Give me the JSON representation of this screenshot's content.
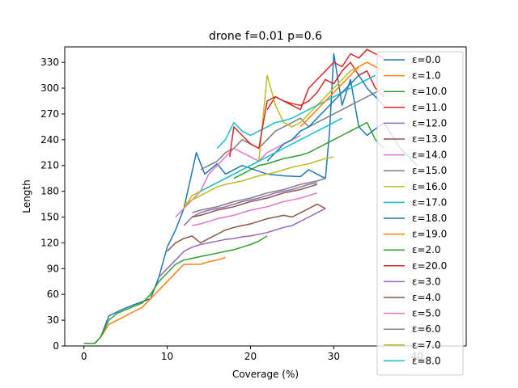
{
  "chart_data": {
    "type": "line",
    "title": "drone f=0.01 p=0.6",
    "xlabel": "Coverage (%)",
    "ylabel": "Length",
    "xlim": [
      -2.3,
      45.9
    ],
    "ylim": [
      0,
      348
    ],
    "xticks": [
      0,
      10,
      20,
      30,
      40
    ],
    "yticks": [
      0,
      30,
      60,
      90,
      120,
      150,
      180,
      210,
      240,
      270,
      300,
      330
    ],
    "grid": false,
    "legend_position": "right",
    "series": [
      {
        "name": "ε=0.0",
        "color": "#1f77b4",
        "x": [
          0,
          1.3,
          2,
          3,
          4.5,
          6,
          8,
          9,
          10,
          11,
          12,
          13.5,
          14.5,
          16,
          17,
          19,
          22,
          24,
          26,
          27,
          28,
          29,
          29.5,
          30,
          31,
          32,
          33,
          34,
          36,
          38,
          40
        ],
        "y": [
          3,
          3,
          10,
          35,
          42,
          48,
          55,
          80,
          115,
          135,
          160,
          225,
          200,
          212,
          200,
          210,
          200,
          198,
          197,
          205,
          200,
          195,
          250,
          340,
          280,
          310,
          255,
          245,
          260,
          230,
          210
        ]
      },
      {
        "name": "ε=1.0",
        "color": "#ff7f0e",
        "x": [
          0,
          1.3,
          2,
          3,
          4,
          5,
          6,
          7,
          8,
          9,
          10,
          11,
          12,
          13,
          14,
          15,
          16,
          17
        ],
        "y": [
          3,
          3,
          10,
          25,
          30,
          35,
          40,
          45,
          55,
          65,
          75,
          85,
          95,
          95,
          95,
          98,
          100,
          103
        ]
      },
      {
        "name": "ε=10.0",
        "color": "#2ca02c",
        "x": [
          0,
          1.3,
          2,
          3,
          4,
          5,
          6,
          7,
          8,
          9,
          10,
          11,
          12,
          13,
          14,
          15,
          16,
          17,
          18,
          19,
          20,
          21,
          22
        ],
        "y": [
          3,
          3,
          10,
          30,
          38,
          42,
          46,
          50,
          60,
          75,
          85,
          95,
          100,
          102,
          104,
          106,
          108,
          110,
          112,
          115,
          118,
          122,
          128
        ]
      },
      {
        "name": "ε=11.0",
        "color": "#d62728",
        "x": [
          22,
          23,
          24,
          25,
          26,
          27,
          28,
          29,
          30,
          31,
          32,
          33,
          34,
          35,
          36
        ],
        "y": [
          275,
          290,
          285,
          282,
          280,
          285,
          295,
          310,
          305,
          320,
          330,
          315,
          320,
          300,
          290
        ]
      },
      {
        "name": "ε=12.0",
        "color": "#9467bd",
        "x": [
          9,
          10,
          11,
          12,
          13,
          14,
          15,
          16,
          17,
          18,
          19,
          20,
          21,
          22,
          23,
          24,
          25,
          26,
          27,
          28,
          29
        ],
        "y": [
          80,
          90,
          100,
          110,
          115,
          118,
          120,
          122,
          124,
          125,
          127,
          128,
          130,
          132,
          135,
          138,
          140,
          145,
          150,
          155,
          160
        ]
      },
      {
        "name": "ε=13.0",
        "color": "#8c564b",
        "x": [
          10,
          11,
          12,
          13,
          14,
          15,
          16,
          17,
          18,
          19,
          20,
          21,
          22,
          23,
          24,
          25,
          26,
          27,
          28,
          29
        ],
        "y": [
          110,
          120,
          125,
          128,
          120,
          125,
          130,
          135,
          138,
          140,
          142,
          145,
          148,
          150,
          152,
          150,
          155,
          160,
          165,
          160
        ]
      },
      {
        "name": "ε=14.0",
        "color": "#e377c2",
        "x": [
          11,
          12,
          13,
          14,
          15,
          16,
          17,
          18,
          19,
          20,
          21,
          22,
          23,
          24,
          25,
          26
        ],
        "y": [
          150,
          160,
          170,
          180,
          200,
          210,
          220,
          230,
          225,
          220,
          215,
          225,
          230,
          235,
          240,
          245
        ]
      },
      {
        "name": "ε=15.0",
        "color": "#7f7f7f",
        "x": [
          14,
          15,
          16,
          17,
          18,
          19,
          20,
          21,
          22,
          23,
          24,
          25,
          26,
          27,
          28,
          29,
          30,
          31,
          32,
          33,
          34,
          35,
          36
        ],
        "y": [
          205,
          210,
          215,
          225,
          230,
          240,
          235,
          230,
          240,
          250,
          255,
          260,
          265,
          255,
          260,
          265,
          270,
          275,
          280,
          285,
          290,
          295,
          300
        ]
      },
      {
        "name": "ε=16.0",
        "color": "#bcbd22",
        "x": [
          12,
          13,
          14,
          15,
          16,
          17,
          18,
          19,
          20,
          21,
          22,
          23,
          24,
          25,
          26,
          27,
          28,
          29,
          30,
          31,
          32,
          33
        ],
        "y": [
          160,
          175,
          180,
          185,
          190,
          195,
          200,
          205,
          210,
          215,
          315,
          280,
          260,
          255,
          260,
          270,
          280,
          290,
          300,
          310,
          320,
          325
        ]
      },
      {
        "name": "ε=17.0",
        "color": "#17becf",
        "x": [
          16,
          17,
          18,
          19,
          20,
          21,
          22,
          23,
          24,
          25,
          26,
          27,
          28,
          29,
          30,
          31,
          32,
          33,
          34,
          35
        ],
        "y": [
          230,
          240,
          260,
          250,
          245,
          250,
          255,
          260,
          262,
          265,
          270,
          275,
          280,
          285,
          290,
          295,
          300,
          305,
          310,
          315
        ]
      },
      {
        "name": "ε=18.0",
        "color": "#1f77b4",
        "x": [
          22,
          23,
          24,
          25,
          26,
          27,
          28,
          29,
          30,
          31,
          32,
          33,
          34,
          35,
          36
        ],
        "y": [
          215,
          225,
          235,
          240,
          250,
          255,
          265,
          275,
          285,
          295,
          305,
          315,
          300,
          290,
          280
        ]
      },
      {
        "name": "ε=19.0",
        "color": "#ff7f0e",
        "x": [
          26,
          27,
          28,
          29,
          30,
          31,
          32,
          33,
          34,
          35,
          36
        ],
        "y": [
          255,
          265,
          275,
          285,
          295,
          305,
          315,
          325,
          330,
          325,
          320
        ]
      },
      {
        "name": "ε=2.0",
        "color": "#2ca02c",
        "x": [
          18,
          19,
          20,
          21,
          22,
          23,
          24,
          25,
          26,
          27,
          28,
          29,
          30,
          31,
          32,
          33,
          34,
          35,
          36
        ],
        "y": [
          195,
          200,
          205,
          210,
          212,
          215,
          218,
          220,
          222,
          225,
          230,
          235,
          240,
          245,
          250,
          255,
          260,
          240,
          230
        ]
      },
      {
        "name": "ε=20.0",
        "color": "#d62728",
        "x": [
          17.5,
          18,
          19,
          20,
          21,
          22,
          23,
          24,
          25,
          26,
          27,
          28,
          29,
          30,
          31,
          32,
          33,
          34,
          35,
          36
        ],
        "y": [
          220,
          255,
          245,
          235,
          230,
          285,
          290,
          285,
          280,
          275,
          300,
          310,
          320,
          330,
          325,
          340,
          335,
          345,
          340,
          335
        ]
      },
      {
        "name": "ε=3.0",
        "color": "#9467bd",
        "x": [
          12,
          13,
          14,
          15,
          16,
          17,
          18,
          19,
          20,
          21,
          22,
          23,
          24,
          25,
          26,
          27,
          28
        ],
        "y": [
          140,
          150,
          155,
          158,
          160,
          162,
          165,
          168,
          170,
          172,
          175,
          178,
          180,
          182,
          185,
          188,
          190
        ]
      },
      {
        "name": "ε=4.0",
        "color": "#8c564b",
        "x": [
          13,
          14,
          15,
          16,
          17,
          18,
          19,
          20,
          21,
          22,
          23,
          24,
          25,
          26,
          27,
          28
        ],
        "y": [
          150,
          152,
          155,
          158,
          160,
          162,
          165,
          168,
          170,
          172,
          175,
          178,
          180,
          182,
          185,
          188
        ]
      },
      {
        "name": "ε=5.0",
        "color": "#e377c2",
        "x": [
          13,
          14,
          15,
          16,
          17,
          18,
          19,
          20,
          21,
          22,
          23,
          24,
          25,
          26,
          27,
          28
        ],
        "y": [
          140,
          142,
          145,
          148,
          150,
          152,
          155,
          158,
          160,
          162,
          165,
          168,
          170,
          172,
          175,
          178
        ]
      },
      {
        "name": "ε=6.0",
        "color": "#7f7f7f",
        "x": [
          13,
          14,
          15,
          16,
          17,
          18,
          19,
          20,
          21,
          22,
          23,
          24,
          25,
          26,
          27,
          28,
          29
        ],
        "y": [
          155,
          158,
          160,
          162,
          165,
          168,
          170,
          172,
          175,
          178,
          180,
          182,
          185,
          188,
          190,
          192,
          195
        ]
      },
      {
        "name": "ε=7.0",
        "color": "#bcbd22",
        "x": [
          12,
          13,
          14,
          15,
          16,
          17,
          18,
          19,
          20,
          21,
          22,
          23,
          24,
          25,
          26,
          27,
          28,
          29,
          30
        ],
        "y": [
          165,
          170,
          175,
          180,
          185,
          188,
          190,
          192,
          195,
          198,
          200,
          202,
          205,
          208,
          210,
          212,
          215,
          218,
          220
        ]
      },
      {
        "name": "ε=8.0",
        "color": "#17becf",
        "x": [
          14,
          15,
          16,
          17,
          18,
          19,
          20,
          21,
          22,
          23,
          24,
          25,
          26,
          27,
          28,
          29,
          30,
          31
        ],
        "y": [
          180,
          185,
          190,
          195,
          200,
          205,
          210,
          215,
          220,
          225,
          230,
          235,
          240,
          245,
          250,
          255,
          260,
          265
        ]
      }
    ]
  }
}
